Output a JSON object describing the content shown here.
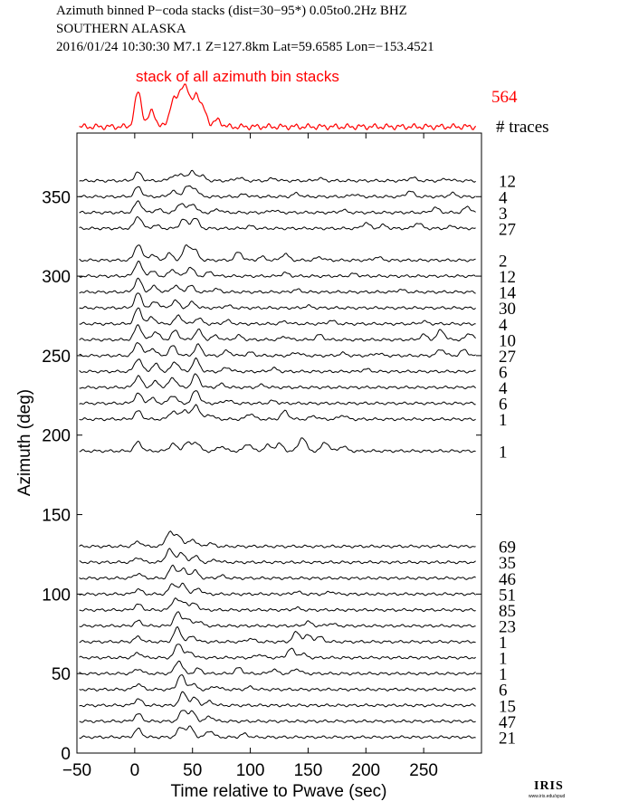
{
  "header": {
    "line1": "Azimuth binned P−coda stacks (dist=30−95*)  0.05to0.2Hz  BHZ",
    "line2": "SOUTHERN ALASKA",
    "line3": "2016/01/24  10:30:30  M7.1  Z=127.8km Lat=59.6585 Lon=−153.4521"
  },
  "logo": {
    "text": "IRIS",
    "sub": "www.iris.edu/spud"
  },
  "colors": {
    "trace": "#000000",
    "stack": "#ff0000",
    "axis": "#000000"
  },
  "chart_data": {
    "type": "line",
    "xlabel": "Time relative to Pwave (sec)",
    "ylabel": "Azimuth (deg)",
    "xlim": [
      -50,
      300
    ],
    "ylim": [
      0,
      390
    ],
    "xticks": [
      -50,
      0,
      50,
      100,
      150,
      200,
      250
    ],
    "xtick_labels": [
      "−50",
      "0",
      "50",
      "100",
      "150",
      "200",
      "250"
    ],
    "yticks": [
      0,
      50,
      100,
      150,
      200,
      250,
      300,
      350
    ],
    "counts_header": "# traces",
    "stack": {
      "label": "stack of all azimuth bin stacks",
      "count": "564",
      "peaks": [
        [
          3,
          1.0
        ],
        [
          15,
          0.45
        ],
        [
          33,
          0.75
        ],
        [
          40,
          0.85
        ],
        [
          45,
          0.9
        ],
        [
          53,
          0.95
        ],
        [
          60,
          0.45
        ],
        [
          72,
          0.2
        ]
      ]
    },
    "traces": [
      {
        "azimuth": 360,
        "count": "12",
        "peaks": [
          [
            3,
            0.5
          ],
          [
            33,
            0.3
          ],
          [
            41,
            0.4
          ],
          [
            50,
            0.55
          ],
          [
            58,
            0.3
          ],
          [
            90,
            0.2
          ],
          [
            120,
            0.15
          ],
          [
            160,
            0.15
          ],
          [
            240,
            0.2
          ],
          [
            270,
            0.12
          ]
        ]
      },
      {
        "azimuth": 350,
        "count": "4",
        "peaks": [
          [
            3,
            0.6
          ],
          [
            33,
            0.35
          ],
          [
            45,
            0.6
          ],
          [
            52,
            0.5
          ],
          [
            95,
            0.15
          ],
          [
            140,
            0.2
          ],
          [
            190,
            0.15
          ],
          [
            238,
            0.35
          ],
          [
            275,
            0.2
          ]
        ]
      },
      {
        "azimuth": 340,
        "count": "3",
        "peaks": [
          [
            3,
            0.7
          ],
          [
            20,
            0.2
          ],
          [
            40,
            0.6
          ],
          [
            50,
            0.55
          ],
          [
            72,
            0.2
          ],
          [
            120,
            0.15
          ],
          [
            180,
            0.15
          ],
          [
            260,
            0.3
          ],
          [
            288,
            0.35
          ]
        ]
      },
      {
        "azimuth": 330,
        "count": "27",
        "peaks": [
          [
            3,
            0.75
          ],
          [
            18,
            0.2
          ],
          [
            42,
            0.55
          ],
          [
            52,
            0.65
          ],
          [
            100,
            0.15
          ],
          [
            200,
            0.35
          ],
          [
            215,
            0.2
          ],
          [
            245,
            0.35
          ],
          [
            275,
            0.15
          ]
        ]
      },
      {
        "azimuth": 310,
        "count": "2",
        "peaks": [
          [
            3,
            1.0
          ],
          [
            15,
            0.35
          ],
          [
            30,
            0.4
          ],
          [
            45,
            0.9
          ],
          [
            52,
            0.6
          ],
          [
            90,
            0.5
          ],
          [
            110,
            0.2
          ],
          [
            130,
            0.4
          ],
          [
            160,
            0.2
          ],
          [
            210,
            0.2
          ]
        ]
      },
      {
        "azimuth": 300,
        "count": "12",
        "peaks": [
          [
            3,
            0.9
          ],
          [
            15,
            0.3
          ],
          [
            33,
            0.4
          ],
          [
            48,
            0.55
          ],
          [
            65,
            0.25
          ],
          [
            130,
            0.2
          ],
          [
            190,
            0.15
          ]
        ]
      },
      {
        "azimuth": 290,
        "count": "14",
        "peaks": [
          [
            3,
            0.8
          ],
          [
            17,
            0.35
          ],
          [
            35,
            0.4
          ],
          [
            48,
            0.4
          ],
          [
            70,
            0.2
          ],
          [
            140,
            0.15
          ],
          [
            230,
            0.15
          ]
        ]
      },
      {
        "azimuth": 280,
        "count": "30",
        "peaks": [
          [
            3,
            0.9
          ],
          [
            18,
            0.4
          ],
          [
            35,
            0.45
          ],
          [
            50,
            0.35
          ],
          [
            80,
            0.15
          ],
          [
            150,
            0.12
          ]
        ]
      },
      {
        "azimuth": 270,
        "count": "4",
        "peaks": [
          [
            3,
            0.95
          ],
          [
            15,
            0.4
          ],
          [
            38,
            0.5
          ],
          [
            55,
            0.35
          ],
          [
            80,
            0.2
          ],
          [
            130,
            0.15
          ],
          [
            170,
            0.2
          ],
          [
            250,
            0.15
          ]
        ]
      },
      {
        "azimuth": 260,
        "count": "10",
        "peaks": [
          [
            3,
            0.9
          ],
          [
            18,
            0.5
          ],
          [
            35,
            0.55
          ],
          [
            55,
            0.6
          ],
          [
            70,
            0.25
          ],
          [
            90,
            0.25
          ],
          [
            130,
            0.2
          ],
          [
            160,
            0.3
          ],
          [
            250,
            0.3
          ],
          [
            265,
            0.6
          ],
          [
            290,
            0.4
          ]
        ]
      },
      {
        "azimuth": 250,
        "count": "27",
        "peaks": [
          [
            3,
            0.85
          ],
          [
            15,
            0.45
          ],
          [
            33,
            0.6
          ],
          [
            55,
            0.65
          ],
          [
            80,
            0.3
          ],
          [
            100,
            0.2
          ],
          [
            140,
            0.2
          ],
          [
            180,
            0.15
          ],
          [
            210,
            0.15
          ],
          [
            265,
            0.4
          ],
          [
            285,
            0.35
          ]
        ]
      },
      {
        "azimuth": 240,
        "count": "6",
        "peaks": [
          [
            3,
            0.8
          ],
          [
            18,
            0.45
          ],
          [
            35,
            0.6
          ],
          [
            53,
            0.75
          ],
          [
            80,
            0.25
          ],
          [
            120,
            0.2
          ],
          [
            200,
            0.15
          ]
        ]
      },
      {
        "azimuth": 230,
        "count": "4",
        "peaks": [
          [
            3,
            0.7
          ],
          [
            18,
            0.35
          ],
          [
            33,
            0.6
          ],
          [
            53,
            0.8
          ],
          [
            75,
            0.2
          ],
          [
            110,
            0.15
          ]
        ]
      },
      {
        "azimuth": 220,
        "count": "6",
        "peaks": [
          [
            3,
            0.6
          ],
          [
            15,
            0.3
          ],
          [
            33,
            0.5
          ],
          [
            53,
            0.8
          ],
          [
            80,
            0.2
          ],
          [
            120,
            0.15
          ]
        ]
      },
      {
        "azimuth": 210,
        "count": "1",
        "peaks": [
          [
            3,
            0.5
          ],
          [
            33,
            0.5
          ],
          [
            43,
            0.6
          ],
          [
            53,
            0.9
          ],
          [
            65,
            0.3
          ],
          [
            100,
            0.35
          ],
          [
            130,
            0.5
          ],
          [
            155,
            0.2
          ],
          [
            180,
            0.25
          ]
        ]
      },
      {
        "azimuth": 190,
        "count": "1",
        "peaks": [
          [
            3,
            0.55
          ],
          [
            33,
            0.45
          ],
          [
            45,
            0.5
          ],
          [
            53,
            0.55
          ],
          [
            75,
            0.3
          ],
          [
            98,
            0.45
          ],
          [
            115,
            0.35
          ],
          [
            125,
            0.45
          ],
          [
            145,
            0.85
          ],
          [
            165,
            0.55
          ],
          [
            180,
            0.3
          ]
        ]
      },
      {
        "azimuth": 130,
        "count": "69",
        "peaks": [
          [
            3,
            0.3
          ],
          [
            30,
            0.9
          ],
          [
            38,
            0.7
          ],
          [
            50,
            0.45
          ],
          [
            65,
            0.2
          ]
        ]
      },
      {
        "azimuth": 120,
        "count": "35",
        "peaks": [
          [
            3,
            0.3
          ],
          [
            30,
            0.8
          ],
          [
            40,
            0.6
          ],
          [
            52,
            0.4
          ],
          [
            70,
            0.15
          ]
        ]
      },
      {
        "azimuth": 110,
        "count": "46",
        "peaks": [
          [
            3,
            0.3
          ],
          [
            33,
            0.75
          ],
          [
            42,
            0.55
          ],
          [
            52,
            0.45
          ],
          [
            75,
            0.15
          ]
        ]
      },
      {
        "azimuth": 100,
        "count": "51",
        "peaks": [
          [
            3,
            0.3
          ],
          [
            33,
            0.65
          ],
          [
            42,
            0.6
          ],
          [
            55,
            0.35
          ],
          [
            140,
            0.15
          ],
          [
            170,
            0.15
          ]
        ]
      },
      {
        "azimuth": 90,
        "count": "85",
        "peaks": [
          [
            3,
            0.35
          ],
          [
            35,
            0.7
          ],
          [
            43,
            0.5
          ],
          [
            52,
            0.4
          ],
          [
            140,
            0.12
          ]
        ]
      },
      {
        "azimuth": 80,
        "count": "23",
        "peaks": [
          [
            3,
            0.3
          ],
          [
            37,
            0.8
          ],
          [
            45,
            0.45
          ],
          [
            55,
            0.3
          ],
          [
            150,
            0.25
          ],
          [
            170,
            0.15
          ]
        ]
      },
      {
        "azimuth": 70,
        "count": "1",
        "peaks": [
          [
            3,
            0.3
          ],
          [
            37,
            0.85
          ],
          [
            50,
            0.35
          ],
          [
            100,
            0.2
          ],
          [
            140,
            0.6
          ],
          [
            150,
            0.4
          ],
          [
            160,
            0.3
          ]
        ]
      },
      {
        "azimuth": 60,
        "count": "1",
        "peaks": [
          [
            3,
            0.3
          ],
          [
            38,
            0.9
          ],
          [
            48,
            0.35
          ],
          [
            108,
            0.2
          ],
          [
            135,
            0.55
          ],
          [
            145,
            0.25
          ]
        ]
      },
      {
        "azimuth": 50,
        "count": "1",
        "peaks": [
          [
            3,
            0.3
          ],
          [
            38,
            0.8
          ],
          [
            55,
            0.3
          ],
          [
            90,
            0.35
          ],
          [
            120,
            0.25
          ],
          [
            140,
            0.3
          ]
        ]
      },
      {
        "azimuth": 40,
        "count": "6",
        "peaks": [
          [
            3,
            0.35
          ],
          [
            40,
            0.9
          ],
          [
            50,
            0.35
          ],
          [
            70,
            0.2
          ],
          [
            100,
            0.15
          ]
        ]
      },
      {
        "azimuth": 30,
        "count": "15",
        "peaks": [
          [
            3,
            0.4
          ],
          [
            42,
            0.8
          ],
          [
            52,
            0.45
          ],
          [
            65,
            0.25
          ]
        ]
      },
      {
        "azimuth": 20,
        "count": "47",
        "peaks": [
          [
            3,
            0.45
          ],
          [
            42,
            0.7
          ],
          [
            50,
            0.55
          ],
          [
            65,
            0.3
          ]
        ]
      },
      {
        "azimuth": 10,
        "count": "21",
        "peaks": [
          [
            3,
            0.5
          ],
          [
            40,
            0.6
          ],
          [
            48,
            0.6
          ],
          [
            65,
            0.4
          ],
          [
            95,
            0.2
          ]
        ]
      }
    ]
  }
}
